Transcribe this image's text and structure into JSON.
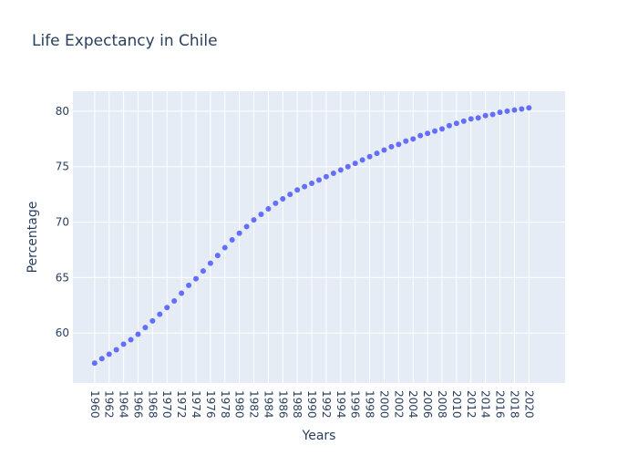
{
  "chart_data": {
    "type": "scatter",
    "title": "Life Expectancy in Chile",
    "xlabel": "Years",
    "ylabel": "Percentage",
    "x": [
      1960,
      1961,
      1962,
      1963,
      1964,
      1965,
      1966,
      1967,
      1968,
      1969,
      1970,
      1971,
      1972,
      1973,
      1974,
      1975,
      1976,
      1977,
      1978,
      1979,
      1980,
      1981,
      1982,
      1983,
      1984,
      1985,
      1986,
      1987,
      1988,
      1989,
      1990,
      1991,
      1992,
      1993,
      1994,
      1995,
      1996,
      1997,
      1998,
      1999,
      2000,
      2001,
      2002,
      2003,
      2004,
      2005,
      2006,
      2007,
      2008,
      2009,
      2010,
      2011,
      2012,
      2013,
      2014,
      2015,
      2016,
      2017,
      2018,
      2019,
      2020
    ],
    "y": [
      57.3,
      57.7,
      58.1,
      58.5,
      59.0,
      59.4,
      59.9,
      60.5,
      61.1,
      61.7,
      62.3,
      62.9,
      63.6,
      64.3,
      64.9,
      65.6,
      66.3,
      67.0,
      67.7,
      68.4,
      69.0,
      69.6,
      70.2,
      70.7,
      71.2,
      71.7,
      72.1,
      72.5,
      72.9,
      73.2,
      73.5,
      73.8,
      74.1,
      74.4,
      74.7,
      75.0,
      75.3,
      75.6,
      75.9,
      76.2,
      76.5,
      76.8,
      77.0,
      77.3,
      77.5,
      77.8,
      78.0,
      78.2,
      78.4,
      78.7,
      78.9,
      79.1,
      79.3,
      79.4,
      79.6,
      79.7,
      79.9,
      80.0,
      80.1,
      80.2,
      80.3
    ],
    "xlim": [
      1957,
      2025
    ],
    "ylim": [
      55.5,
      81.8
    ],
    "xticks": [
      "1960",
      "1962",
      "1964",
      "1966",
      "1968",
      "1970",
      "1972",
      "1974",
      "1976",
      "1978",
      "1980",
      "1982",
      "1984",
      "1986",
      "1988",
      "1990",
      "1992",
      "1994",
      "1996",
      "1998",
      "2000",
      "2002",
      "2004",
      "2006",
      "2008",
      "2010",
      "2012",
      "2014",
      "2016",
      "2018",
      "2020"
    ],
    "yticks": [
      "60",
      "65",
      "70",
      "75",
      "80"
    ],
    "grid": true,
    "colors": {
      "marker": "#636efa",
      "plot_bg": "#e5ecf6",
      "grid": "#ffffff",
      "text": "#2a3f5f"
    }
  }
}
